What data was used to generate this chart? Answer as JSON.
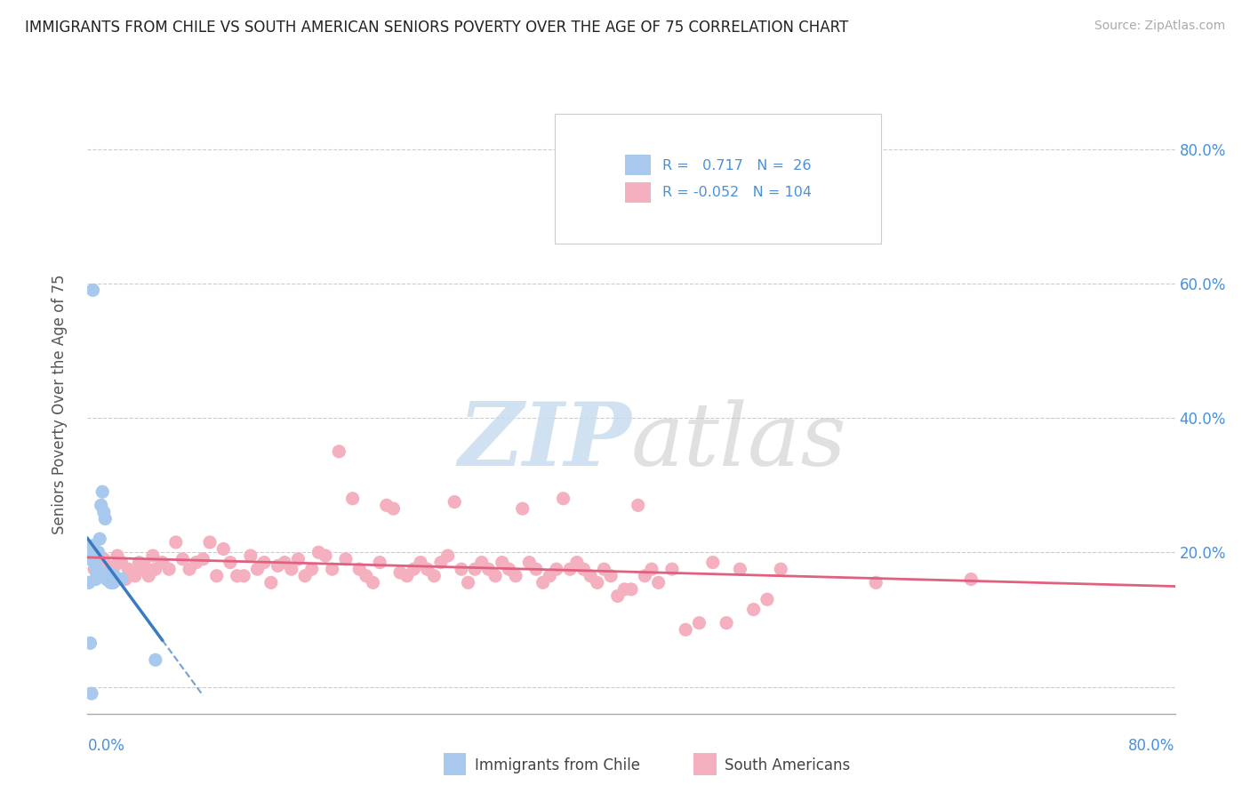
{
  "title": "IMMIGRANTS FROM CHILE VS SOUTH AMERICAN SENIORS POVERTY OVER THE AGE OF 75 CORRELATION CHART",
  "source": "Source: ZipAtlas.com",
  "ylabel": "Seniors Poverty Over the Age of 75",
  "legend_blue_label": "Immigrants from Chile",
  "legend_pink_label": "South Americans",
  "r_blue": 0.717,
  "n_blue": 26,
  "r_pink": -0.052,
  "n_pink": 104,
  "xlim": [
    0.0,
    0.8
  ],
  "ylim": [
    -0.04,
    0.88
  ],
  "ytick_values": [
    0.0,
    0.2,
    0.4,
    0.6,
    0.8
  ],
  "ytick_labels": [
    "",
    "20.0%",
    "40.0%",
    "60.0%",
    "80.0%"
  ],
  "blue_scatter": [
    [
      0.002,
      0.19
    ],
    [
      0.003,
      0.2
    ],
    [
      0.004,
      0.21
    ],
    [
      0.005,
      0.19
    ],
    [
      0.006,
      0.18
    ],
    [
      0.007,
      0.17
    ],
    [
      0.008,
      0.2
    ],
    [
      0.009,
      0.22
    ],
    [
      0.01,
      0.27
    ],
    [
      0.011,
      0.29
    ],
    [
      0.012,
      0.26
    ],
    [
      0.013,
      0.25
    ],
    [
      0.014,
      0.16
    ],
    [
      0.015,
      0.17
    ],
    [
      0.016,
      0.16
    ],
    [
      0.017,
      0.155
    ],
    [
      0.018,
      0.16
    ],
    [
      0.019,
      0.155
    ],
    [
      0.001,
      0.155
    ],
    [
      0.002,
      0.065
    ],
    [
      0.003,
      -0.01
    ],
    [
      0.004,
      0.59
    ],
    [
      0.006,
      0.16
    ],
    [
      0.02,
      0.165
    ],
    [
      0.025,
      0.16
    ],
    [
      0.05,
      0.04
    ]
  ],
  "pink_scatter": [
    [
      0.005,
      0.175
    ],
    [
      0.008,
      0.175
    ],
    [
      0.01,
      0.185
    ],
    [
      0.012,
      0.19
    ],
    [
      0.015,
      0.175
    ],
    [
      0.018,
      0.175
    ],
    [
      0.02,
      0.18
    ],
    [
      0.022,
      0.195
    ],
    [
      0.025,
      0.185
    ],
    [
      0.028,
      0.16
    ],
    [
      0.03,
      0.175
    ],
    [
      0.032,
      0.17
    ],
    [
      0.035,
      0.165
    ],
    [
      0.038,
      0.185
    ],
    [
      0.04,
      0.175
    ],
    [
      0.042,
      0.18
    ],
    [
      0.045,
      0.165
    ],
    [
      0.048,
      0.195
    ],
    [
      0.05,
      0.175
    ],
    [
      0.055,
      0.185
    ],
    [
      0.06,
      0.175
    ],
    [
      0.065,
      0.215
    ],
    [
      0.07,
      0.19
    ],
    [
      0.075,
      0.175
    ],
    [
      0.08,
      0.185
    ],
    [
      0.085,
      0.19
    ],
    [
      0.09,
      0.215
    ],
    [
      0.095,
      0.165
    ],
    [
      0.1,
      0.205
    ],
    [
      0.105,
      0.185
    ],
    [
      0.11,
      0.165
    ],
    [
      0.115,
      0.165
    ],
    [
      0.12,
      0.195
    ],
    [
      0.125,
      0.175
    ],
    [
      0.13,
      0.185
    ],
    [
      0.135,
      0.155
    ],
    [
      0.14,
      0.18
    ],
    [
      0.145,
      0.185
    ],
    [
      0.15,
      0.175
    ],
    [
      0.155,
      0.19
    ],
    [
      0.16,
      0.165
    ],
    [
      0.165,
      0.175
    ],
    [
      0.17,
      0.2
    ],
    [
      0.175,
      0.195
    ],
    [
      0.18,
      0.175
    ],
    [
      0.185,
      0.35
    ],
    [
      0.19,
      0.19
    ],
    [
      0.195,
      0.28
    ],
    [
      0.2,
      0.175
    ],
    [
      0.205,
      0.165
    ],
    [
      0.21,
      0.155
    ],
    [
      0.215,
      0.185
    ],
    [
      0.22,
      0.27
    ],
    [
      0.225,
      0.265
    ],
    [
      0.23,
      0.17
    ],
    [
      0.235,
      0.165
    ],
    [
      0.24,
      0.175
    ],
    [
      0.245,
      0.185
    ],
    [
      0.25,
      0.175
    ],
    [
      0.255,
      0.165
    ],
    [
      0.26,
      0.185
    ],
    [
      0.265,
      0.195
    ],
    [
      0.27,
      0.275
    ],
    [
      0.275,
      0.175
    ],
    [
      0.28,
      0.155
    ],
    [
      0.285,
      0.175
    ],
    [
      0.29,
      0.185
    ],
    [
      0.295,
      0.175
    ],
    [
      0.3,
      0.165
    ],
    [
      0.305,
      0.185
    ],
    [
      0.31,
      0.175
    ],
    [
      0.315,
      0.165
    ],
    [
      0.32,
      0.265
    ],
    [
      0.325,
      0.185
    ],
    [
      0.33,
      0.175
    ],
    [
      0.335,
      0.155
    ],
    [
      0.34,
      0.165
    ],
    [
      0.345,
      0.175
    ],
    [
      0.35,
      0.28
    ],
    [
      0.355,
      0.175
    ],
    [
      0.36,
      0.185
    ],
    [
      0.365,
      0.175
    ],
    [
      0.37,
      0.165
    ],
    [
      0.375,
      0.155
    ],
    [
      0.38,
      0.175
    ],
    [
      0.385,
      0.165
    ],
    [
      0.39,
      0.135
    ],
    [
      0.395,
      0.145
    ],
    [
      0.4,
      0.145
    ],
    [
      0.405,
      0.27
    ],
    [
      0.41,
      0.165
    ],
    [
      0.415,
      0.175
    ],
    [
      0.42,
      0.155
    ],
    [
      0.43,
      0.175
    ],
    [
      0.44,
      0.085
    ],
    [
      0.45,
      0.095
    ],
    [
      0.46,
      0.185
    ],
    [
      0.47,
      0.095
    ],
    [
      0.48,
      0.175
    ],
    [
      0.49,
      0.115
    ],
    [
      0.5,
      0.13
    ],
    [
      0.51,
      0.175
    ],
    [
      0.58,
      0.155
    ],
    [
      0.65,
      0.16
    ]
  ],
  "blue_color": "#a8c8ee",
  "pink_color": "#f5b0c0",
  "blue_line_color": "#3a7abf",
  "pink_line_color": "#e06080",
  "grid_color": "#cccccc",
  "bg_color": "#ffffff",
  "title_color": "#222222",
  "axis_label_color": "#4a90d9",
  "legend_text_color": "#4a90d9"
}
